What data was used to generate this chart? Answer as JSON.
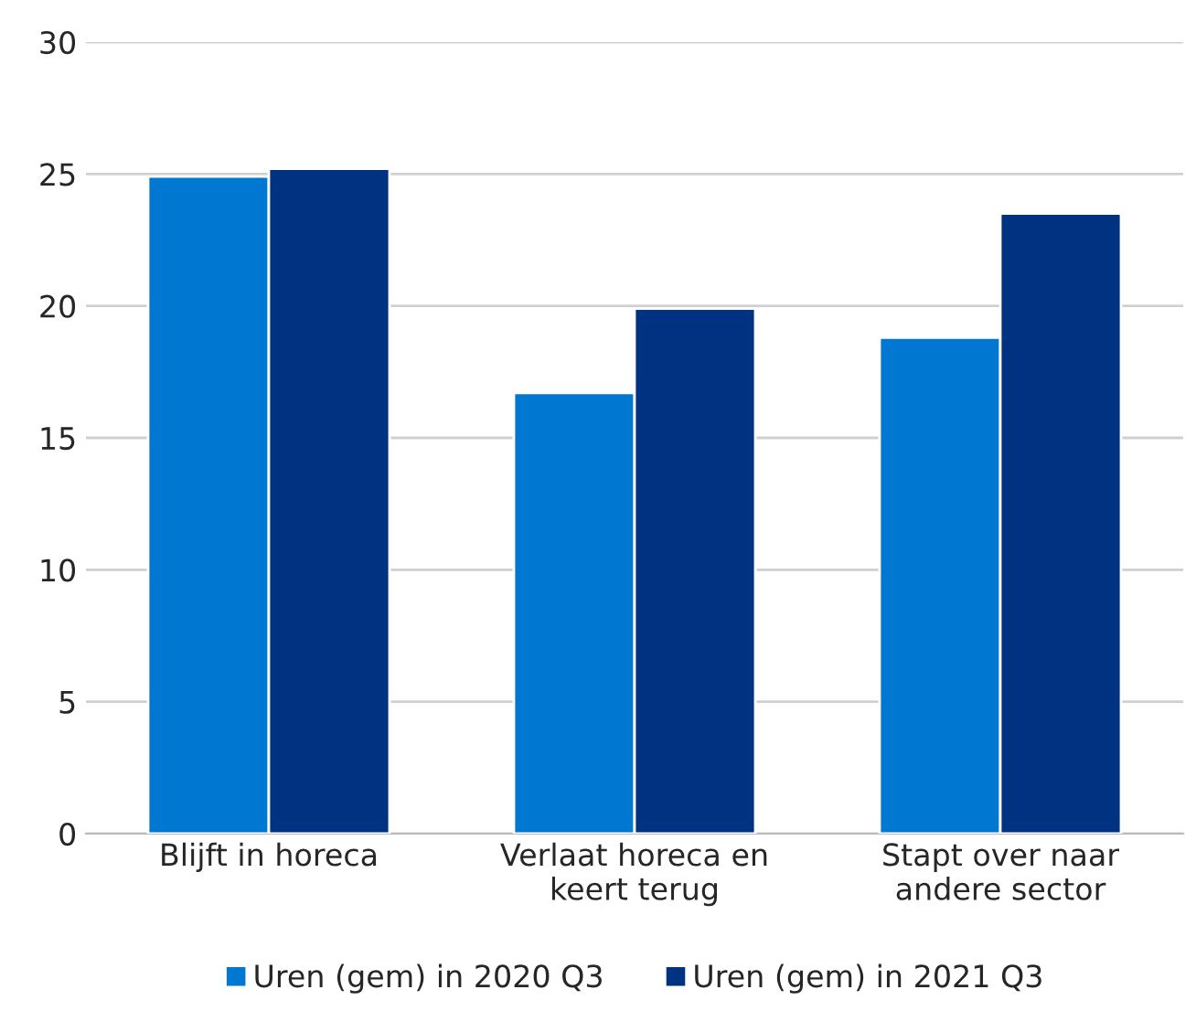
{
  "chart_data": {
    "type": "bar",
    "categories": [
      "Blijft in horeca",
      "Verlaat horeca en\nkeert terug",
      "Stapt over naar\nandere sector"
    ],
    "series": [
      {
        "name": "Uren (gem) in 2020 Q3",
        "color": "#0077d0",
        "values": [
          24.9,
          16.7,
          18.8
        ]
      },
      {
        "name": "Uren (gem) in 2021 Q3",
        "color": "#003282",
        "values": [
          25.2,
          19.9,
          23.5
        ]
      }
    ],
    "ylim": [
      0,
      30
    ],
    "yticks": [
      0,
      5,
      10,
      15,
      20,
      25,
      30
    ],
    "grid": "y",
    "legend": "bottom"
  }
}
